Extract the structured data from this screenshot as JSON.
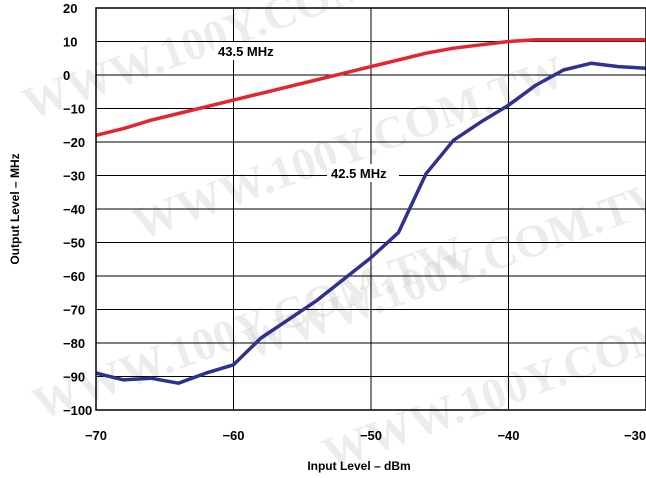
{
  "chart_data": {
    "type": "line",
    "xlabel": "Input Level – dBm",
    "ylabel": "Output Level – MHz",
    "xlim": [
      -70,
      -30
    ],
    "ylim": [
      -100,
      20
    ],
    "grid": true,
    "x_ticks": [
      -70,
      -60,
      -50,
      -40,
      -30
    ],
    "x_tick_labels": [
      "−70",
      "−60",
      "−50",
      "−40",
      "−30"
    ],
    "y_ticks": [
      20,
      10,
      0,
      -10,
      -20,
      -30,
      -40,
      -50,
      -60,
      -70,
      -80,
      -90,
      -100
    ],
    "y_tick_labels": [
      "20",
      "10",
      "0",
      "−10",
      "−20",
      "−30",
      "−40",
      "−50",
      "−60",
      "−70",
      "−80",
      "−90",
      "−100"
    ],
    "series": [
      {
        "name": "43.5 MHz",
        "color": "#e8232b",
        "x": [
          -70,
          -68,
          -66,
          -64,
          -62,
          -60,
          -58,
          -56,
          -54,
          -52,
          -50,
          -48,
          -46,
          -44,
          -42,
          -40,
          -38,
          -36,
          -34,
          -32,
          -30
        ],
        "y": [
          -18,
          -16,
          -13.5,
          -11.5,
          -9.5,
          -7.5,
          -5.5,
          -3.5,
          -1.5,
          0.5,
          2.5,
          4.5,
          6.5,
          8,
          9,
          10,
          10.5,
          10.5,
          10.5,
          10.5,
          10.5
        ]
      },
      {
        "name": "42.5 MHz",
        "color": "#2e3192",
        "x": [
          -70,
          -68,
          -66,
          -64,
          -62,
          -60,
          -58,
          -56,
          -54,
          -52,
          -50,
          -48,
          -46,
          -44,
          -42,
          -40,
          -38,
          -36,
          -34,
          -32,
          -30
        ],
        "y": [
          -89,
          -91,
          -90.5,
          -92,
          -89,
          -86.5,
          -78.5,
          -73,
          -67.5,
          -61,
          -54.5,
          -47,
          -29.5,
          -19.5,
          -14,
          -9,
          -3,
          1.5,
          3.5,
          2.5,
          2
        ]
      }
    ],
    "watermark": "WWW.100Y.COM.TW"
  }
}
